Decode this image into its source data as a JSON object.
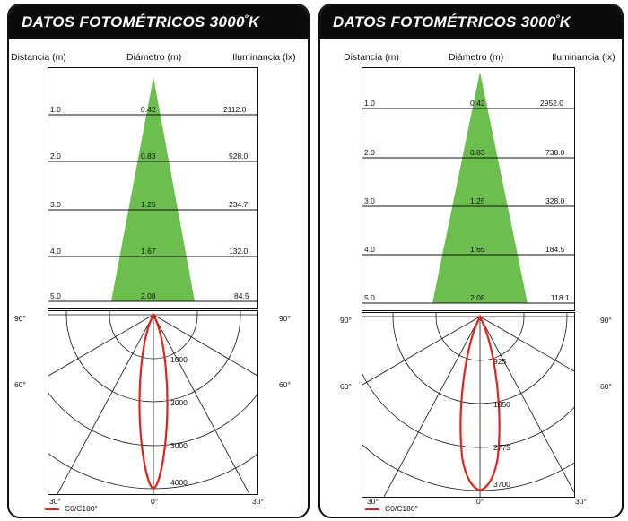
{
  "colors": {
    "beam": "#6cbf4f",
    "curve": "#e0241b",
    "line": "#111111",
    "header_bg": "#0b0b0b"
  },
  "panels": [
    {
      "title": "DATOS FOTOMÉTRICOS 3000",
      "title_deg": "º",
      "title_unit": "K",
      "headers": {
        "distance": "Distancia (m)",
        "diameter": "Diámetro (m)",
        "illuminance": "Iluminancia (lx)"
      },
      "rows": [
        {
          "distance": "1.0",
          "diameter": "0.42",
          "illuminance": "2112.0"
        },
        {
          "distance": "2.0",
          "diameter": "0.83",
          "illuminance": "528.0"
        },
        {
          "distance": "3.0",
          "diameter": "1.25",
          "illuminance": "234.7"
        },
        {
          "distance": "4.0",
          "diameter": "1.67",
          "illuminance": "132.0"
        },
        {
          "distance": "5.0",
          "diameter": "2.08",
          "illuminance": "84.5"
        }
      ],
      "polar": {
        "angles": {
          "a90l": "90°",
          "a90r": "90°",
          "a60l": "60°",
          "a60r": "60°",
          "a30l": "30°",
          "a0": "0°",
          "a30r": "30°"
        },
        "radial_labels": [
          "1000",
          "2000",
          "3000",
          "4000"
        ],
        "r_max": 4000
      },
      "legend": "C0/C180°"
    },
    {
      "title": "DATOS FOTOMÉTRICOS 3000",
      "title_deg": "º",
      "title_unit": "K",
      "headers": {
        "distance": "Distancia (m)",
        "diameter": "Diámetro (m)",
        "illuminance": "Iluminancia (lx)"
      },
      "rows": [
        {
          "distance": "1.0",
          "diameter": "0.42",
          "illuminance": "2952.0"
        },
        {
          "distance": "2.0",
          "diameter": "0.83",
          "illuminance": "738.0"
        },
        {
          "distance": "3.0",
          "diameter": "1.25",
          "illuminance": "328.0"
        },
        {
          "distance": "4.0",
          "diameter": "1.65",
          "illuminance": "184.5"
        },
        {
          "distance": "5.0",
          "diameter": "2.08",
          "illuminance": "118.1"
        }
      ],
      "polar": {
        "angles": {
          "a90l": "90°",
          "a90r": "90°",
          "a60l": "60°",
          "a60r": "60°",
          "a30l": "30°",
          "a0": "0°",
          "a30r": "30°"
        },
        "radial_labels": [
          "925",
          "1850",
          "2775",
          "3700"
        ],
        "r_max": 3700
      },
      "legend": "C0/C180°"
    }
  ]
}
